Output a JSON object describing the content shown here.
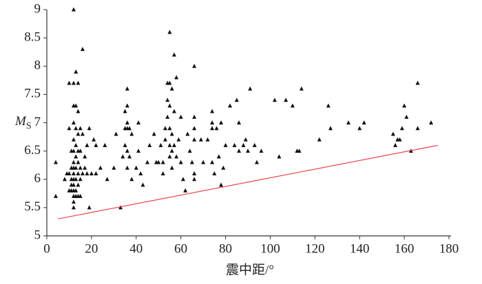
{
  "chart_data": {
    "type": "scatter",
    "xlabel": "震中距/°",
    "ylabel": "M",
    "ylabel_subscript": "S",
    "xlim": [
      0,
      180
    ],
    "ylim": [
      5,
      9
    ],
    "xticks": [
      0,
      20,
      40,
      60,
      80,
      100,
      120,
      140,
      160,
      180
    ],
    "yticks": [
      5,
      5.5,
      6,
      6.5,
      7,
      7.5,
      8,
      8.5,
      9
    ],
    "series": [
      {
        "color": "#111111",
        "marker": "triangle",
        "x": [
          4,
          4,
          8,
          9,
          10,
          10,
          11,
          11,
          12,
          12,
          12,
          12,
          12,
          12,
          12,
          12,
          12,
          12,
          12,
          12,
          12,
          12,
          12,
          13,
          13,
          13,
          13,
          13,
          13,
          13,
          13,
          13,
          14,
          14,
          14,
          14,
          14,
          14,
          14,
          14,
          11,
          11,
          11,
          10,
          10,
          15,
          15,
          15,
          15,
          15,
          16,
          16,
          16,
          17,
          17,
          18,
          18,
          19,
          19,
          20,
          21,
          22,
          22,
          24,
          26,
          27,
          30,
          31,
          33,
          34,
          35,
          35,
          35,
          36,
          36,
          36,
          36,
          36,
          36,
          37,
          37,
          38,
          38,
          40,
          41,
          41,
          42,
          43,
          45,
          46,
          48,
          49,
          50,
          51,
          52,
          52,
          53,
          53,
          54,
          54,
          54,
          55,
          55,
          55,
          55,
          55,
          55,
          56,
          56,
          56,
          56,
          57,
          57,
          57,
          58,
          58,
          59,
          60,
          60,
          61,
          62,
          63,
          64,
          65,
          66,
          66,
          66,
          66,
          66,
          66,
          69,
          70,
          72,
          74,
          74,
          74,
          74,
          75,
          76,
          77,
          78,
          78,
          79,
          80,
          82,
          84,
          85,
          86,
          86,
          88,
          89,
          90,
          91,
          93,
          94,
          96,
          102,
          104,
          107,
          110,
          112,
          113,
          114,
          122,
          126,
          127,
          135,
          140,
          142,
          155,
          156,
          157,
          158,
          159,
          160,
          161,
          163,
          166,
          166,
          172
        ],
        "values": [
          6.3,
          5.7,
          6.0,
          6.1,
          7.7,
          6.9,
          6.2,
          6.5,
          9.0,
          7.7,
          7.3,
          7.0,
          6.7,
          6.5,
          6.3,
          6.2,
          6.1,
          6.0,
          5.9,
          5.8,
          5.7,
          5.6,
          5.5,
          7.9,
          7.3,
          6.9,
          6.6,
          6.4,
          6.2,
          6.0,
          5.8,
          5.7,
          7.7,
          7.2,
          6.8,
          6.5,
          6.3,
          6.1,
          5.9,
          5.7,
          6.0,
          5.8,
          5.9,
          6.1,
          5.8,
          6.9,
          6.5,
          6.2,
          6.0,
          5.7,
          8.3,
          6.8,
          6.1,
          6.4,
          6.2,
          6.6,
          6.1,
          6.9,
          5.5,
          6.1,
          6.7,
          6.6,
          6.1,
          6.2,
          6.6,
          6.0,
          6.2,
          6.8,
          5.5,
          6.4,
          7.2,
          6.9,
          6.6,
          7.6,
          7.3,
          7.0,
          6.9,
          6.5,
          6.2,
          6.9,
          6.4,
          6.8,
          6.0,
          6.2,
          7.0,
          6.5,
          6.1,
          5.9,
          6.3,
          6.6,
          6.8,
          6.3,
          6.3,
          6.6,
          6.3,
          6.1,
          6.9,
          6.7,
          7.7,
          7.4,
          7.1,
          8.6,
          7.7,
          7.3,
          6.9,
          6.6,
          6.4,
          7.6,
          6.8,
          6.5,
          6.2,
          8.2,
          7.2,
          6.6,
          7.8,
          6.4,
          6.7,
          7.1,
          6.3,
          6.0,
          5.8,
          6.8,
          6.5,
          6.3,
          8.0,
          7.1,
          6.9,
          6.7,
          6.1,
          6.0,
          6.7,
          6.3,
          6.7,
          7.2,
          7.0,
          6.9,
          6.3,
          6.1,
          6.9,
          6.4,
          7.0,
          5.9,
          6.2,
          6.6,
          7.3,
          6.6,
          7.4,
          7.0,
          6.5,
          6.6,
          6.7,
          6.5,
          7.6,
          6.6,
          6.3,
          6.5,
          7.4,
          6.4,
          7.4,
          7.3,
          6.5,
          6.5,
          7.6,
          6.7,
          7.3,
          6.9,
          7.0,
          6.9,
          7.0,
          6.8,
          6.6,
          6.7,
          6.7,
          6.9,
          7.3,
          7.1,
          6.5,
          7.7,
          6.9,
          7.0
        ]
      },
      {
        "color": "#e8474c",
        "marker": "line",
        "x": [
          5,
          175
        ],
        "values": [
          5.3,
          6.6
        ]
      }
    ]
  }
}
